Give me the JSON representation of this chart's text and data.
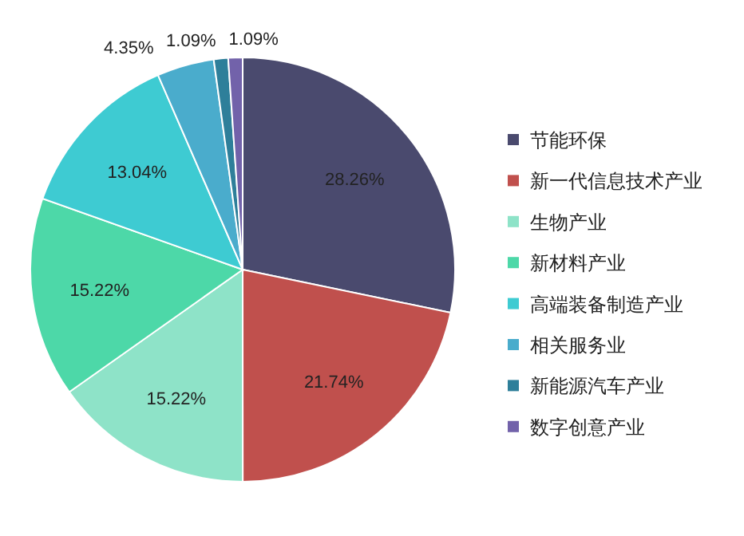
{
  "chart_data": {
    "type": "pie",
    "categories": [
      "节能环保",
      "新一代信息技术产业",
      "生物产业",
      "新材料产业",
      "高端装备制造产业",
      "相关服务业",
      "新能源汽车产业",
      "数字创意产业"
    ],
    "values": [
      28.26,
      21.74,
      15.22,
      15.22,
      13.04,
      4.35,
      1.09,
      1.09
    ],
    "colors": [
      "#4a4a6e",
      "#c0504d",
      "#8ee3c8",
      "#4dd8a8",
      "#3ecbd2",
      "#4aaccc",
      "#2e7f9a",
      "#7262aa"
    ],
    "value_labels": [
      "28.26%",
      "21.74%",
      "15.22%",
      "15.22%",
      "13.04%",
      "4.35%",
      "1.09%",
      "1.09%"
    ],
    "legend": "right"
  }
}
